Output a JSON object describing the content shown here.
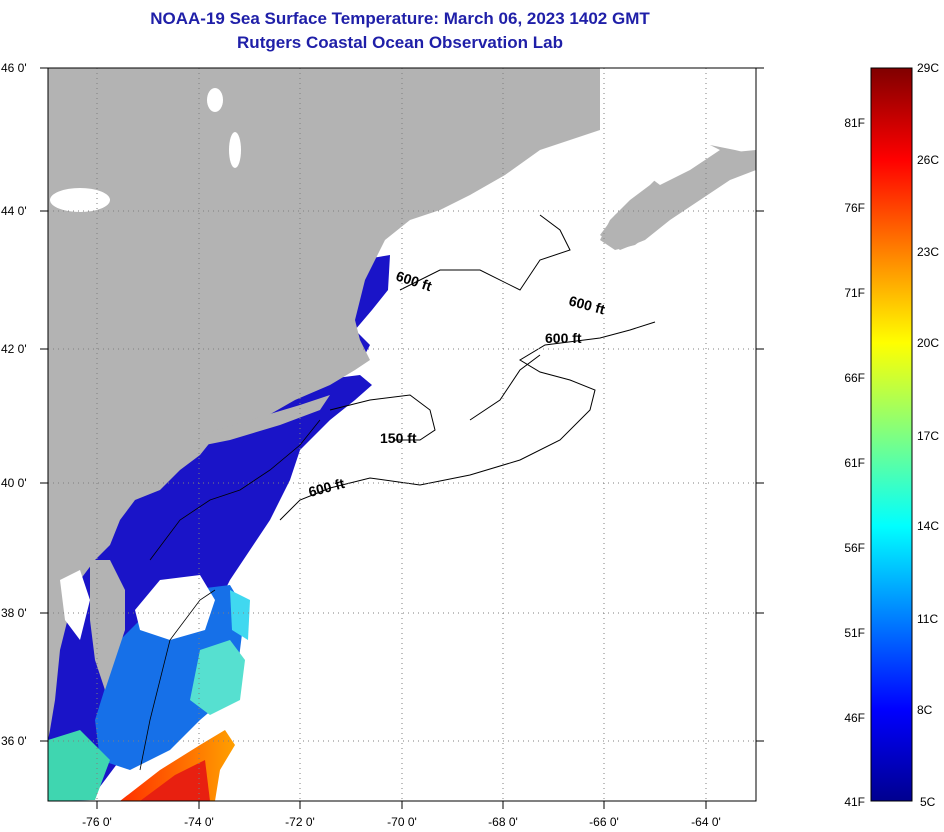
{
  "title_line1": "NOAA-19 Sea Surface Temperature:  March 06, 2023 1402 GMT",
  "title_line2": "Rutgers Coastal Ocean Observation Lab",
  "map": {
    "lat_ticks": [
      "46 0'",
      "44 0'",
      "42 0'",
      "40 0'",
      "38 0'",
      "36 0'"
    ],
    "lon_ticks": [
      "-76 0'",
      "-74 0'",
      "-72 0'",
      "-70 0'",
      "-68 0'",
      "-66 0'",
      "-64 0'"
    ],
    "contour_labels": [
      "600 ft",
      "600 ft",
      "600 ft",
      "150 ft",
      "600 ft"
    ],
    "colors": {
      "land": "#b3b3b3",
      "cloud": "#ffffff",
      "grid": "#7f7f7f"
    }
  },
  "colorbar": {
    "fahrenheit_labels": [
      "81F",
      "76F",
      "71F",
      "66F",
      "61F",
      "56F",
      "51F",
      "46F",
      "41F"
    ],
    "celsius_labels": [
      "29C",
      "26C",
      "23C",
      "20C",
      "17C",
      "14C",
      "11C",
      "8C",
      "5C"
    ],
    "colors": [
      "#00008f",
      "#0000ff",
      "#0080ff",
      "#00ffff",
      "#80ff80",
      "#ffff00",
      "#ff8000",
      "#ff0000",
      "#800000"
    ]
  }
}
